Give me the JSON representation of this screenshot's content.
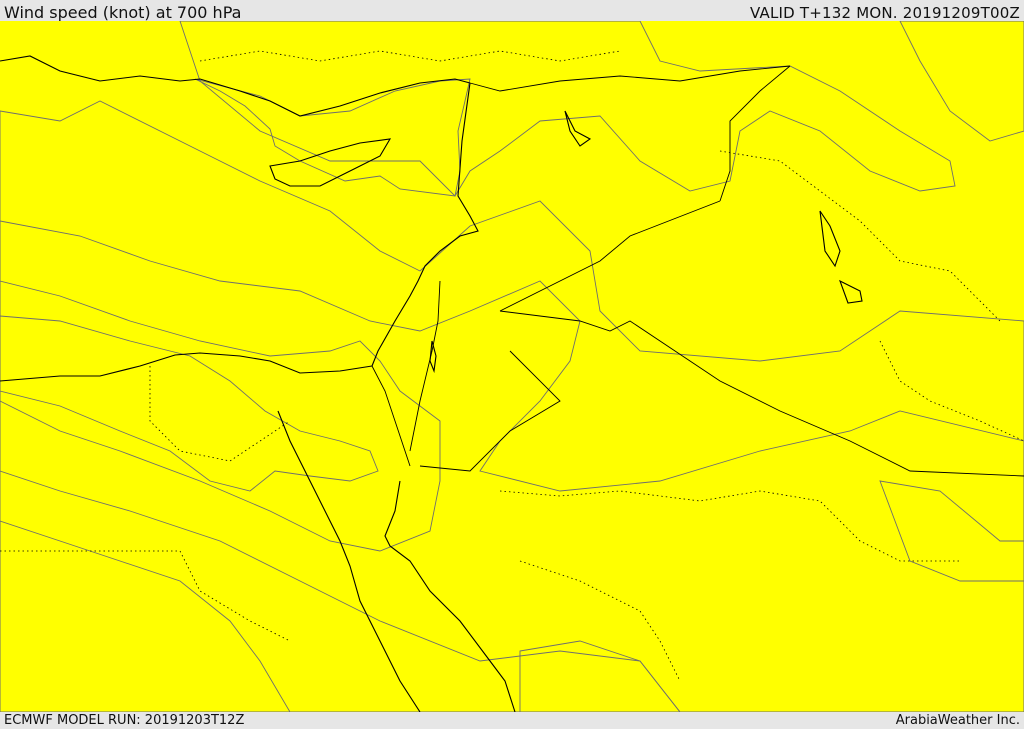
{
  "header": {
    "title": "Wind speed (knot) at 700 hPa",
    "valid": "VALID T+132 MON. 20191209T00Z"
  },
  "footer": {
    "model_run": "ECMWF MODEL RUN: 20191203T12Z",
    "credit": "ArabiaWeather Inc."
  },
  "map": {
    "variable": "Wind speed",
    "unit": "knot",
    "level": "700 hPa",
    "region": "Eastern Mediterranean, Levant, Egypt, Iraq and northern Arabia",
    "colors": {
      "calm": "#ffffff",
      "light": "#ffdead",
      "band_1": "#ffff00",
      "band_2": "#ffdd00",
      "band_3": "#ffbb00",
      "band_4": "#ff9900",
      "band_5": "#ff7f00",
      "contour": "#6e6e6e",
      "coastline": "#000000"
    }
  }
}
